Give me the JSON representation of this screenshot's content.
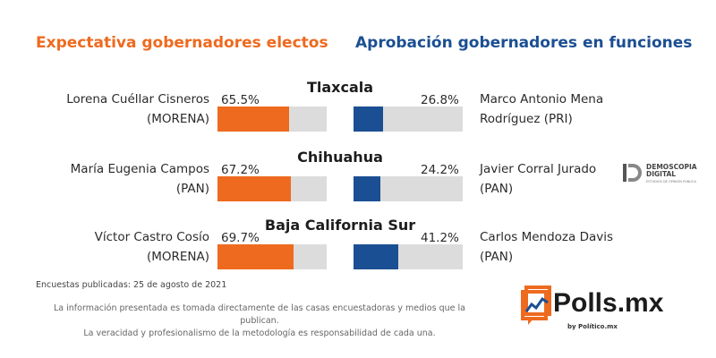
{
  "headers": {
    "left": "Expectativa gobernadores electos",
    "right": "Aprobación gobernadores en funciones"
  },
  "chart_data": {
    "type": "bar",
    "title_left": "Expectativa gobernadores electos",
    "title_right": "Aprobación gobernadores en funciones",
    "ylim": [
      0,
      100
    ],
    "categories": [
      "Tlaxcala",
      "Chihuahua",
      "Baja California Sur"
    ],
    "series": [
      {
        "name": "Expectativa gobernadores electos",
        "color": "#ee6a1f",
        "values": [
          65.5,
          67.2,
          69.7
        ]
      },
      {
        "name": "Aprobación gobernadores en funciones",
        "color": "#1b4f93",
        "values": [
          26.8,
          24.2,
          41.2
        ]
      }
    ],
    "rows": [
      {
        "state": "Tlaxcala",
        "elect": {
          "name": "Lorena Cuéllar Cisneros",
          "party": "(MORENA)",
          "value": 65.5,
          "label": "65.5%"
        },
        "incumbent": {
          "name": "Marco Antonio Mena",
          "party": "Rodríguez (PRI)",
          "value": 26.8,
          "label": "26.8%"
        }
      },
      {
        "state": "Chihuahua",
        "elect": {
          "name": "María Eugenia Campos",
          "party": "(PAN)",
          "value": 67.2,
          "label": "67.2%"
        },
        "incumbent": {
          "name": "Javier Corral Jurado",
          "party": "(PAN)",
          "value": 24.2,
          "label": "24.2%"
        }
      },
      {
        "state": "Baja California Sur",
        "elect": {
          "name": "Víctor Castro Cosío",
          "party": "(MORENA)",
          "value": 69.7,
          "label": "69.7%"
        },
        "incumbent": {
          "name": "Carlos Mendoza Davis",
          "party": "(PAN)",
          "value": 41.2,
          "label": "41.2%"
        }
      }
    ]
  },
  "footer": {
    "date": "Encuestas publicadas: 25 de agosto de 2021",
    "note_line1": "La información presentada es tomada directamente de las casas encuestadoras y medios que la publican.",
    "note_line2": "La veracidad y profesionalismo de la metodología es responsabilidad de cada una."
  },
  "logos": {
    "polls_name": "Polls.mx",
    "polls_sub": "by Político.mx",
    "demoscopia_line1": "DEMOSCOPIA",
    "demoscopia_line2": "DIGITAL",
    "demoscopia_sub": "ESTUDIOS DE OPINIÓN PÚBLICA"
  },
  "colors": {
    "orange": "#ee6a1f",
    "blue": "#1b4f93",
    "track": "#dcdcdc"
  }
}
